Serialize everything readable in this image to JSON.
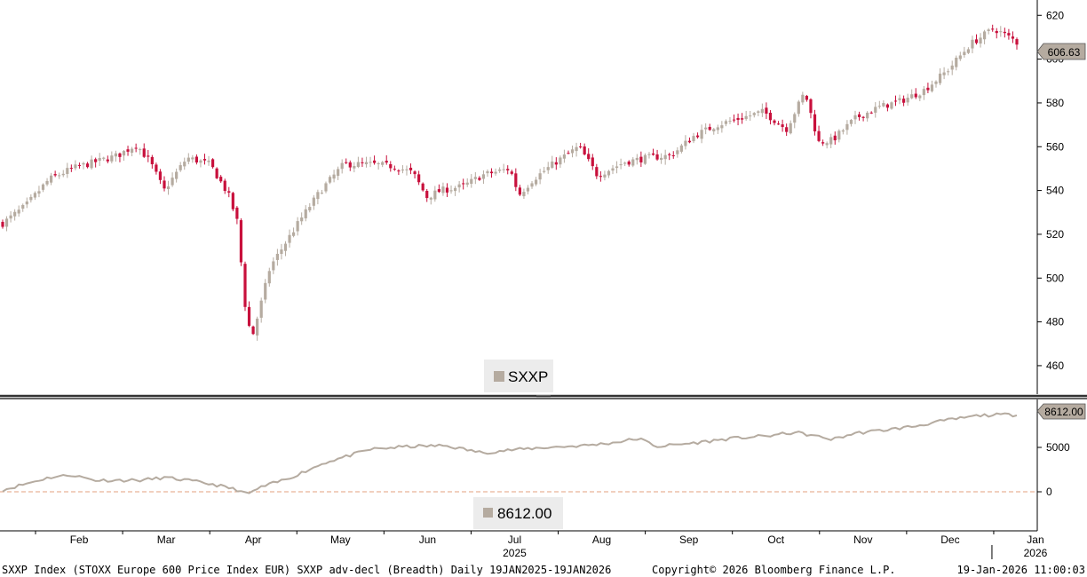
{
  "footer": {
    "left": "SXXP Index (STOXX Europe 600 Price Index EUR) SXXP adv-decl (Breadth) Daily 19JAN2025-19JAN2026",
    "center": "Copyright© 2026 Bloomberg Finance L.P.",
    "right": "19-Jan-2026 11:00:03"
  },
  "colors": {
    "up": "#b5aba0",
    "down": "#c8103c",
    "line": "#b5aba0",
    "zero_line": "#e3a27f",
    "divider": "#333333",
    "badge_fill": "#b5aba0",
    "legend_bg": "#ececec",
    "grid_tick": "#000000"
  },
  "chart_data": [
    {
      "type": "candlestick",
      "series_name": "SXXP",
      "legend_label": "SXXP",
      "last_value_label": "606.63",
      "last_value": 606.63,
      "ylim": [
        447,
        627
      ],
      "yticks": [
        460,
        480,
        500,
        520,
        540,
        560,
        580,
        600,
        620
      ],
      "anchors": [
        {
          "m": 0.0,
          "v": 525
        },
        {
          "m": 0.25,
          "v": 533
        },
        {
          "m": 0.5,
          "v": 545
        },
        {
          "m": 0.75,
          "v": 550
        },
        {
          "m": 1.0,
          "v": 553
        },
        {
          "m": 1.25,
          "v": 556
        },
        {
          "m": 1.45,
          "v": 561
        },
        {
          "m": 1.6,
          "v": 553
        },
        {
          "m": 1.75,
          "v": 540
        },
        {
          "m": 2.0,
          "v": 555
        },
        {
          "m": 2.25,
          "v": 552
        },
        {
          "m": 2.45,
          "v": 538
        },
        {
          "m": 2.55,
          "v": 525
        },
        {
          "m": 2.62,
          "v": 490
        },
        {
          "m": 2.7,
          "v": 472
        },
        {
          "m": 2.8,
          "v": 488
        },
        {
          "m": 2.9,
          "v": 505
        },
        {
          "m": 3.05,
          "v": 515
        },
        {
          "m": 3.25,
          "v": 528
        },
        {
          "m": 3.45,
          "v": 540
        },
        {
          "m": 3.7,
          "v": 552
        },
        {
          "m": 4.0,
          "v": 552
        },
        {
          "m": 4.25,
          "v": 551
        },
        {
          "m": 4.45,
          "v": 548
        },
        {
          "m": 4.6,
          "v": 537
        },
        {
          "m": 4.75,
          "v": 540
        },
        {
          "m": 5.0,
          "v": 542
        },
        {
          "m": 5.2,
          "v": 547
        },
        {
          "m": 5.5,
          "v": 550
        },
        {
          "m": 5.6,
          "v": 538
        },
        {
          "m": 5.75,
          "v": 545
        },
        {
          "m": 6.0,
          "v": 553
        },
        {
          "m": 6.25,
          "v": 560
        },
        {
          "m": 6.45,
          "v": 547
        },
        {
          "m": 6.75,
          "v": 553
        },
        {
          "m": 7.0,
          "v": 555
        },
        {
          "m": 7.25,
          "v": 556
        },
        {
          "m": 7.5,
          "v": 565
        },
        {
          "m": 7.75,
          "v": 570
        },
        {
          "m": 8.0,
          "v": 573
        },
        {
          "m": 8.25,
          "v": 576
        },
        {
          "m": 8.5,
          "v": 568
        },
        {
          "m": 8.7,
          "v": 585
        },
        {
          "m": 8.85,
          "v": 562
        },
        {
          "m": 9.0,
          "v": 563
        },
        {
          "m": 9.25,
          "v": 573
        },
        {
          "m": 9.5,
          "v": 578
        },
        {
          "m": 9.75,
          "v": 581
        },
        {
          "m": 10.0,
          "v": 586
        },
        {
          "m": 10.25,
          "v": 595
        },
        {
          "m": 10.5,
          "v": 607
        },
        {
          "m": 10.75,
          "v": 614
        },
        {
          "m": 11.0,
          "v": 608
        }
      ]
    },
    {
      "type": "line",
      "series_name": "SXXP adv-decl (Breadth)",
      "legend_label": "8612.00",
      "last_value_label": "8612.00",
      "last_value": 8612.0,
      "ylim": [
        -4200,
        10200
      ],
      "yticks": [
        0,
        5000
      ],
      "reference_line": 0,
      "anchors": [
        {
          "m": 0.0,
          "v": 200
        },
        {
          "m": 0.25,
          "v": 900
        },
        {
          "m": 0.5,
          "v": 1600
        },
        {
          "m": 0.75,
          "v": 1900
        },
        {
          "m": 1.0,
          "v": 1300
        },
        {
          "m": 1.5,
          "v": 1300
        },
        {
          "m": 1.75,
          "v": 1600
        },
        {
          "m": 2.0,
          "v": 1300
        },
        {
          "m": 2.3,
          "v": 800
        },
        {
          "m": 2.55,
          "v": 200
        },
        {
          "m": 2.65,
          "v": -300
        },
        {
          "m": 2.8,
          "v": 500
        },
        {
          "m": 3.1,
          "v": 1500
        },
        {
          "m": 3.5,
          "v": 3300
        },
        {
          "m": 4.0,
          "v": 4800
        },
        {
          "m": 4.4,
          "v": 5100
        },
        {
          "m": 4.8,
          "v": 5200
        },
        {
          "m": 5.2,
          "v": 4400
        },
        {
          "m": 5.5,
          "v": 4700
        },
        {
          "m": 5.9,
          "v": 5000
        },
        {
          "m": 6.3,
          "v": 5200
        },
        {
          "m": 6.6,
          "v": 5500
        },
        {
          "m": 6.9,
          "v": 6000
        },
        {
          "m": 7.1,
          "v": 5100
        },
        {
          "m": 7.5,
          "v": 5500
        },
        {
          "m": 7.9,
          "v": 6000
        },
        {
          "m": 8.3,
          "v": 6300
        },
        {
          "m": 8.6,
          "v": 6700
        },
        {
          "m": 8.8,
          "v": 6300
        },
        {
          "m": 9.0,
          "v": 5900
        },
        {
          "m": 9.25,
          "v": 6600
        },
        {
          "m": 9.6,
          "v": 7000
        },
        {
          "m": 9.9,
          "v": 7400
        },
        {
          "m": 10.2,
          "v": 8000
        },
        {
          "m": 10.6,
          "v": 8600
        },
        {
          "m": 10.9,
          "v": 8700
        },
        {
          "m": 11.0,
          "v": 8612
        }
      ]
    }
  ],
  "x_axis": {
    "months": [
      "Feb",
      "Mar",
      "Apr",
      "May",
      "Jun",
      "Jul",
      "Aug",
      "Sep",
      "Oct",
      "Nov",
      "Dec",
      "Jan"
    ],
    "year_labels": [
      {
        "label": "2025",
        "month_index": 5
      },
      {
        "label": "2026",
        "month_index": 11
      }
    ]
  }
}
